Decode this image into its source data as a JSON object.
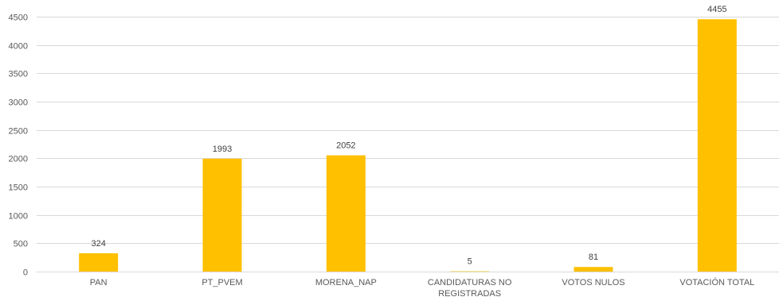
{
  "chart_data": {
    "type": "bar",
    "title": "",
    "xlabel": "",
    "ylabel": "",
    "categories": [
      [
        "PAN"
      ],
      [
        "PT_PVEM"
      ],
      [
        "MORENA_NAP"
      ],
      [
        "CANDIDATURAS NO",
        "REGISTRADAS"
      ],
      [
        "VOTOS NULOS"
      ],
      [
        "VOTACIÓN TOTAL"
      ]
    ],
    "values": [
      324,
      1993,
      2052,
      5,
      81,
      4455
    ],
    "data_labels": [
      "324",
      "1993",
      "2052",
      "5",
      "81",
      "4455"
    ],
    "ylim": [
      0,
      4500
    ],
    "yticks": [
      0,
      500,
      1000,
      1500,
      2000,
      2500,
      3000,
      3500,
      4000,
      4500
    ],
    "ytick_labels": [
      "0",
      "500",
      "1000",
      "1500",
      "2000",
      "2500",
      "3000",
      "3500",
      "4000",
      "4500"
    ],
    "grid": true,
    "legend": "none",
    "bar_color": "#FFC000",
    "grid_color": "#D9D9D9",
    "text_color": "#595959"
  }
}
